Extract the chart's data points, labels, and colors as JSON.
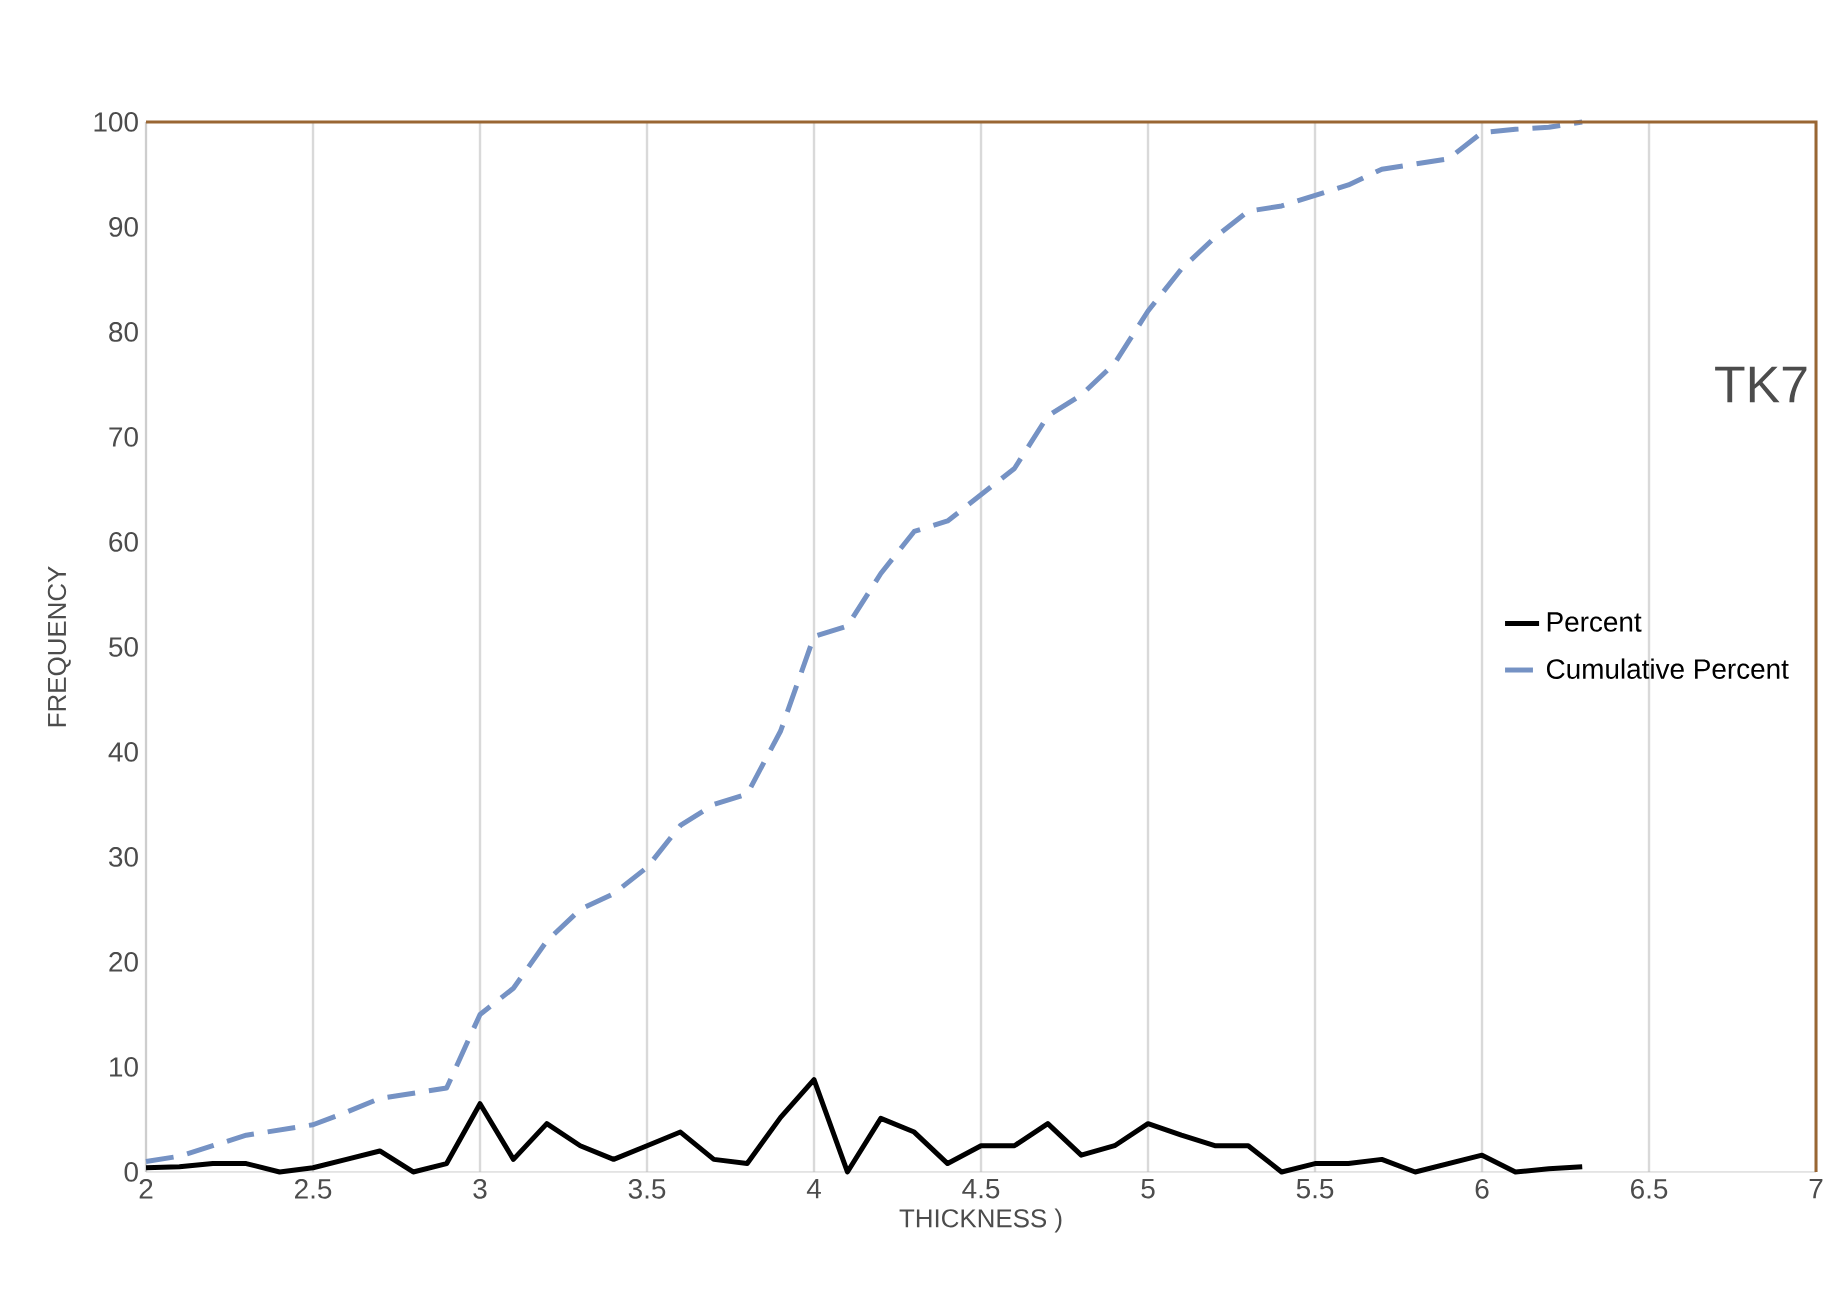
{
  "chart_data": {
    "type": "line",
    "xlabel": "THICKNESS )",
    "ylabel": "FREQUENCY",
    "annotations": [
      "TK7"
    ],
    "xlim": [
      2,
      7
    ],
    "xticks": [
      2,
      2.5,
      3,
      3.5,
      4,
      4.5,
      5,
      5.5,
      6,
      6.5,
      7
    ],
    "ylim": [
      0,
      100
    ],
    "yticks": [
      0,
      10,
      20,
      30,
      40,
      50,
      60,
      70,
      80,
      90,
      100
    ],
    "grid": "x",
    "legend": "right",
    "x": [
      2.0,
      2.1,
      2.2,
      2.3,
      2.4,
      2.5,
      2.6,
      2.7,
      2.8,
      2.9,
      3.0,
      3.1,
      3.2,
      3.3,
      3.4,
      3.5,
      3.6,
      3.7,
      3.8,
      3.9,
      4.0,
      4.1,
      4.2,
      4.3,
      4.4,
      4.5,
      4.6,
      4.7,
      4.8,
      4.9,
      5.0,
      5.1,
      5.2,
      5.3,
      5.4,
      5.5,
      5.6,
      5.7,
      5.8,
      5.9,
      6.0,
      6.1,
      6.2,
      6.3
    ],
    "series": [
      {
        "name": "Percent",
        "color": "#000000",
        "line_style": "solid",
        "marker": "none",
        "values": [
          0.4,
          0.5,
          0.8,
          0.8,
          0,
          0.4,
          1.2,
          2,
          0,
          0.8,
          6.5,
          1.2,
          4.6,
          2.5,
          1.2,
          2.5,
          3.8,
          1.2,
          0.8,
          5.2,
          8.8,
          0,
          5.1,
          3.8,
          0.8,
          2.5,
          2.5,
          4.6,
          1.6,
          2.5,
          4.6,
          3.5,
          2.5,
          2.5,
          0,
          0.8,
          0.8,
          1.2,
          0,
          0.8,
          1.6,
          0,
          0.3,
          0.5
        ]
      },
      {
        "name": "Cumulative Percent",
        "color": "#7592c4",
        "line_style": "dashed",
        "marker": "none",
        "values": [
          1,
          1.5,
          2.5,
          3.5,
          4,
          4.5,
          5.7,
          7,
          7.5,
          8,
          15,
          17.5,
          22,
          25,
          26.5,
          29,
          33,
          35,
          36,
          42,
          51,
          52,
          57,
          61,
          62,
          64.5,
          67,
          72,
          74,
          77,
          82,
          86,
          89,
          91.5,
          92,
          93,
          94,
          95.5,
          96,
          96.5,
          99,
          99.3,
          99.5,
          100
        ]
      }
    ]
  }
}
